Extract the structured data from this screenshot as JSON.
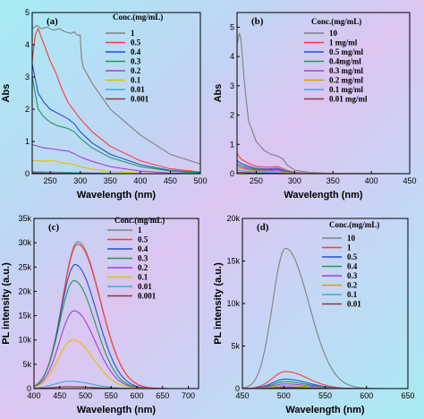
{
  "chart_data": [
    {
      "id": "a",
      "panel_label": "(a)",
      "type": "line",
      "xlabel": "Wavelength (nm)",
      "ylabel": "Abs",
      "xlim": [
        220,
        500
      ],
      "ylim": [
        0,
        5
      ],
      "xticks": [
        250,
        300,
        350,
        400,
        450,
        500
      ],
      "yticks": [
        0,
        1,
        2,
        3,
        4,
        5
      ],
      "legend_title": "Conc.(mg/mL)",
      "legend_position": "top-right",
      "series": [
        {
          "name": "1",
          "color": "#808080",
          "x": [
            220,
            228,
            235,
            245,
            255,
            265,
            275,
            285,
            290,
            295,
            300,
            302,
            305,
            320,
            350,
            400,
            450,
            500
          ],
          "y": [
            4.5,
            4.6,
            4.5,
            4.55,
            4.45,
            4.5,
            4.4,
            4.35,
            4.4,
            4.3,
            4.3,
            3.6,
            3.3,
            2.8,
            2.0,
            1.2,
            0.6,
            0.3
          ]
        },
        {
          "name": "0.5",
          "color": "#ff3b3b",
          "x": [
            220,
            225,
            230,
            240,
            250,
            260,
            270,
            280,
            290,
            300,
            320,
            350,
            400,
            450,
            500
          ],
          "y": [
            3.5,
            4.3,
            4.5,
            4.0,
            3.5,
            3.1,
            2.6,
            2.2,
            1.95,
            1.7,
            1.3,
            0.85,
            0.4,
            0.15,
            0.05
          ]
        },
        {
          "name": "0.4",
          "color": "#1f4fd8",
          "x": [
            220,
            230,
            240,
            250,
            260,
            270,
            280,
            290,
            300,
            320,
            350,
            400,
            450,
            500
          ],
          "y": [
            3.4,
            2.5,
            2.2,
            2.0,
            1.9,
            1.8,
            1.7,
            1.55,
            1.3,
            0.95,
            0.6,
            0.28,
            0.1,
            0.03
          ]
        },
        {
          "name": "0.3",
          "color": "#1a9a55",
          "x": [
            220,
            230,
            240,
            250,
            260,
            270,
            280,
            290,
            300,
            320,
            350,
            400,
            450,
            500
          ],
          "y": [
            3.0,
            2.0,
            1.75,
            1.6,
            1.5,
            1.45,
            1.4,
            1.3,
            1.1,
            0.8,
            0.5,
            0.22,
            0.08,
            0.02
          ]
        },
        {
          "name": "0.2",
          "color": "#a23fd6",
          "x": [
            220,
            230,
            240,
            250,
            260,
            270,
            280,
            290,
            300,
            320,
            350,
            400,
            450,
            500
          ],
          "y": [
            0.9,
            0.85,
            0.8,
            0.78,
            0.75,
            0.72,
            0.7,
            0.62,
            0.52,
            0.38,
            0.22,
            0.08,
            0.02,
            0.0
          ]
        },
        {
          "name": "0.1",
          "color": "#e0c000",
          "x": [
            220,
            230,
            240,
            250,
            260,
            270,
            280,
            290,
            300,
            320,
            350,
            400,
            450,
            500
          ],
          "y": [
            0.4,
            0.4,
            0.38,
            0.42,
            0.38,
            0.34,
            0.32,
            0.28,
            0.22,
            0.14,
            0.07,
            0.02,
            0.0,
            0.0
          ]
        },
        {
          "name": "0.01",
          "color": "#3aa8e0",
          "x": [
            220,
            250,
            300,
            350,
            400,
            500
          ],
          "y": [
            0.06,
            0.05,
            0.03,
            0.01,
            0.0,
            0.0
          ]
        },
        {
          "name": "0.001",
          "color": "#8b3a3a",
          "x": [
            220,
            250,
            300,
            350,
            400,
            500
          ],
          "y": [
            0.03,
            0.02,
            0.01,
            0.0,
            0.0,
            0.0
          ]
        }
      ]
    },
    {
      "id": "b",
      "panel_label": "(b)",
      "type": "line",
      "xlabel": "Wavelength (nm)",
      "ylabel": "Abs",
      "xlim": [
        225,
        450
      ],
      "ylim": [
        0,
        5.5
      ],
      "xticks": [
        250,
        300,
        350,
        400,
        450
      ],
      "yticks": [
        0,
        1,
        2,
        3,
        4,
        5
      ],
      "legend_title": "Conc.(mg/mL)",
      "legend_position": "top-right",
      "series": [
        {
          "name": "10",
          "color": "#808080",
          "x": [
            225,
            228,
            230,
            235,
            240,
            250,
            260,
            270,
            278,
            285,
            290,
            300,
            320,
            350,
            400,
            450
          ],
          "y": [
            4.4,
            4.8,
            4.6,
            3.0,
            1.8,
            1.1,
            0.8,
            0.65,
            0.6,
            0.5,
            0.3,
            0.12,
            0.04,
            0.01,
            0.0,
            0.0
          ]
        },
        {
          "name": "1 mg/ml",
          "color": "#ff3b3b",
          "x": [
            225,
            230,
            240,
            250,
            265,
            278,
            290,
            300,
            320,
            350,
            450
          ],
          "y": [
            0.7,
            0.5,
            0.35,
            0.25,
            0.22,
            0.24,
            0.12,
            0.04,
            0.01,
            0.0,
            0.0
          ]
        },
        {
          "name": "0.5 mg/ml",
          "color": "#1f4fd8",
          "x": [
            225,
            230,
            240,
            250,
            265,
            278,
            290,
            300,
            320,
            450
          ],
          "y": [
            0.45,
            0.35,
            0.25,
            0.18,
            0.16,
            0.18,
            0.08,
            0.03,
            0.01,
            0.0
          ]
        },
        {
          "name": "0.4mg/ml",
          "color": "#1a9a55",
          "x": [
            225,
            230,
            240,
            250,
            265,
            278,
            290,
            300,
            320,
            450
          ],
          "y": [
            0.35,
            0.28,
            0.2,
            0.15,
            0.13,
            0.15,
            0.07,
            0.02,
            0.0,
            0.0
          ]
        },
        {
          "name": "0.3 mg/ml",
          "color": "#a23fd6",
          "x": [
            225,
            230,
            240,
            250,
            265,
            278,
            290,
            300,
            450
          ],
          "y": [
            0.28,
            0.22,
            0.16,
            0.12,
            0.1,
            0.12,
            0.05,
            0.01,
            0.0
          ]
        },
        {
          "name": "0.2 mg/ml",
          "color": "#e0a000",
          "x": [
            225,
            240,
            250,
            270,
            290,
            300,
            450
          ],
          "y": [
            0.2,
            0.12,
            0.09,
            0.08,
            0.04,
            0.01,
            0.0
          ]
        },
        {
          "name": "0.1 mg/ml",
          "color": "#3aa8e0",
          "x": [
            225,
            240,
            260,
            290,
            300,
            450
          ],
          "y": [
            0.12,
            0.07,
            0.05,
            0.02,
            0.0,
            0.0
          ]
        },
        {
          "name": "0.01 mg/ml",
          "color": "#8b3a3a",
          "x": [
            225,
            250,
            300,
            450
          ],
          "y": [
            0.05,
            0.02,
            0.0,
            0.0
          ]
        }
      ]
    },
    {
      "id": "c",
      "panel_label": "(c)",
      "type": "line",
      "xlabel": "Wavelength (nm)",
      "ylabel": "PL intensity (a.u.)",
      "xlim": [
        400,
        720
      ],
      "ylim": [
        0,
        35000
      ],
      "xticks": [
        400,
        450,
        500,
        550,
        600,
        650,
        700
      ],
      "yticks": [
        0,
        5000,
        10000,
        15000,
        20000,
        25000,
        30000,
        35000
      ],
      "ytick_labels": [
        "0",
        "5k",
        "10k",
        "15k",
        "20k",
        "25k",
        "30k",
        "35k"
      ],
      "legend_title": "Conc.(mg/mL)",
      "legend_position": "top-right",
      "series": [
        {
          "name": "1",
          "color": "#808080",
          "peak_x": 485,
          "peak_y": 30200,
          "width_left": 42,
          "width_right": 62
        },
        {
          "name": "0.5",
          "color": "#ff3b3b",
          "peak_x": 485,
          "peak_y": 29700,
          "width_left": 42,
          "width_right": 62
        },
        {
          "name": "0.4",
          "color": "#1f4fd8",
          "peak_x": 480,
          "peak_y": 25500,
          "width_left": 40,
          "width_right": 60
        },
        {
          "name": "0.3",
          "color": "#1a9a55",
          "peak_x": 478,
          "peak_y": 22200,
          "width_left": 40,
          "width_right": 58
        },
        {
          "name": "0.2",
          "color": "#a23fd6",
          "peak_x": 478,
          "peak_y": 16000,
          "width_left": 40,
          "width_right": 58
        },
        {
          "name": "0.1",
          "color": "#e0c000",
          "peak_x": 475,
          "peak_y": 10000,
          "width_left": 40,
          "width_right": 58
        },
        {
          "name": "0.01",
          "color": "#3aa8e0",
          "peak_x": 470,
          "peak_y": 1500,
          "width_left": 42,
          "width_right": 60
        },
        {
          "name": "0.001",
          "color": "#8b3a3a",
          "peak_x": 470,
          "peak_y": 400,
          "width_left": 42,
          "width_right": 60
        }
      ]
    },
    {
      "id": "d",
      "panel_label": "(d)",
      "type": "line",
      "xlabel": "Wavelength (nm)",
      "ylabel": "PL intensity (a.u.)",
      "xlim": [
        450,
        650
      ],
      "ylim": [
        0,
        20000
      ],
      "xticks": [
        450,
        500,
        550,
        600,
        650
      ],
      "yticks": [
        0,
        5000,
        10000,
        15000,
        20000
      ],
      "ytick_labels": [
        "0",
        "5k",
        "10k",
        "15k",
        "20k"
      ],
      "legend_title": "Conc.(mg/mL)",
      "legend_position": "top-right",
      "series": [
        {
          "name": "10",
          "color": "#808080",
          "peak_x": 502,
          "peak_y": 16500,
          "width_left": 22,
          "width_right": 40
        },
        {
          "name": "1",
          "color": "#ff3b3b",
          "peak_x": 502,
          "peak_y": 2000,
          "width_left": 22,
          "width_right": 38
        },
        {
          "name": "0.5",
          "color": "#1f4fd8",
          "peak_x": 502,
          "peak_y": 1100,
          "width_left": 22,
          "width_right": 38
        },
        {
          "name": "0.4",
          "color": "#1a9a55",
          "peak_x": 502,
          "peak_y": 800,
          "width_left": 22,
          "width_right": 38
        },
        {
          "name": "0.3",
          "color": "#a23fd6",
          "peak_x": 502,
          "peak_y": 550,
          "width_left": 22,
          "width_right": 38
        },
        {
          "name": "0.2",
          "color": "#e0a000",
          "peak_x": 502,
          "peak_y": 350,
          "width_left": 22,
          "width_right": 38
        },
        {
          "name": "0.1",
          "color": "#3aa8e0",
          "peak_x": 502,
          "peak_y": 200,
          "width_left": 22,
          "width_right": 38
        },
        {
          "name": "0.01",
          "color": "#8b3a3a",
          "peak_x": 502,
          "peak_y": 100,
          "width_left": 22,
          "width_right": 38
        }
      ]
    }
  ]
}
